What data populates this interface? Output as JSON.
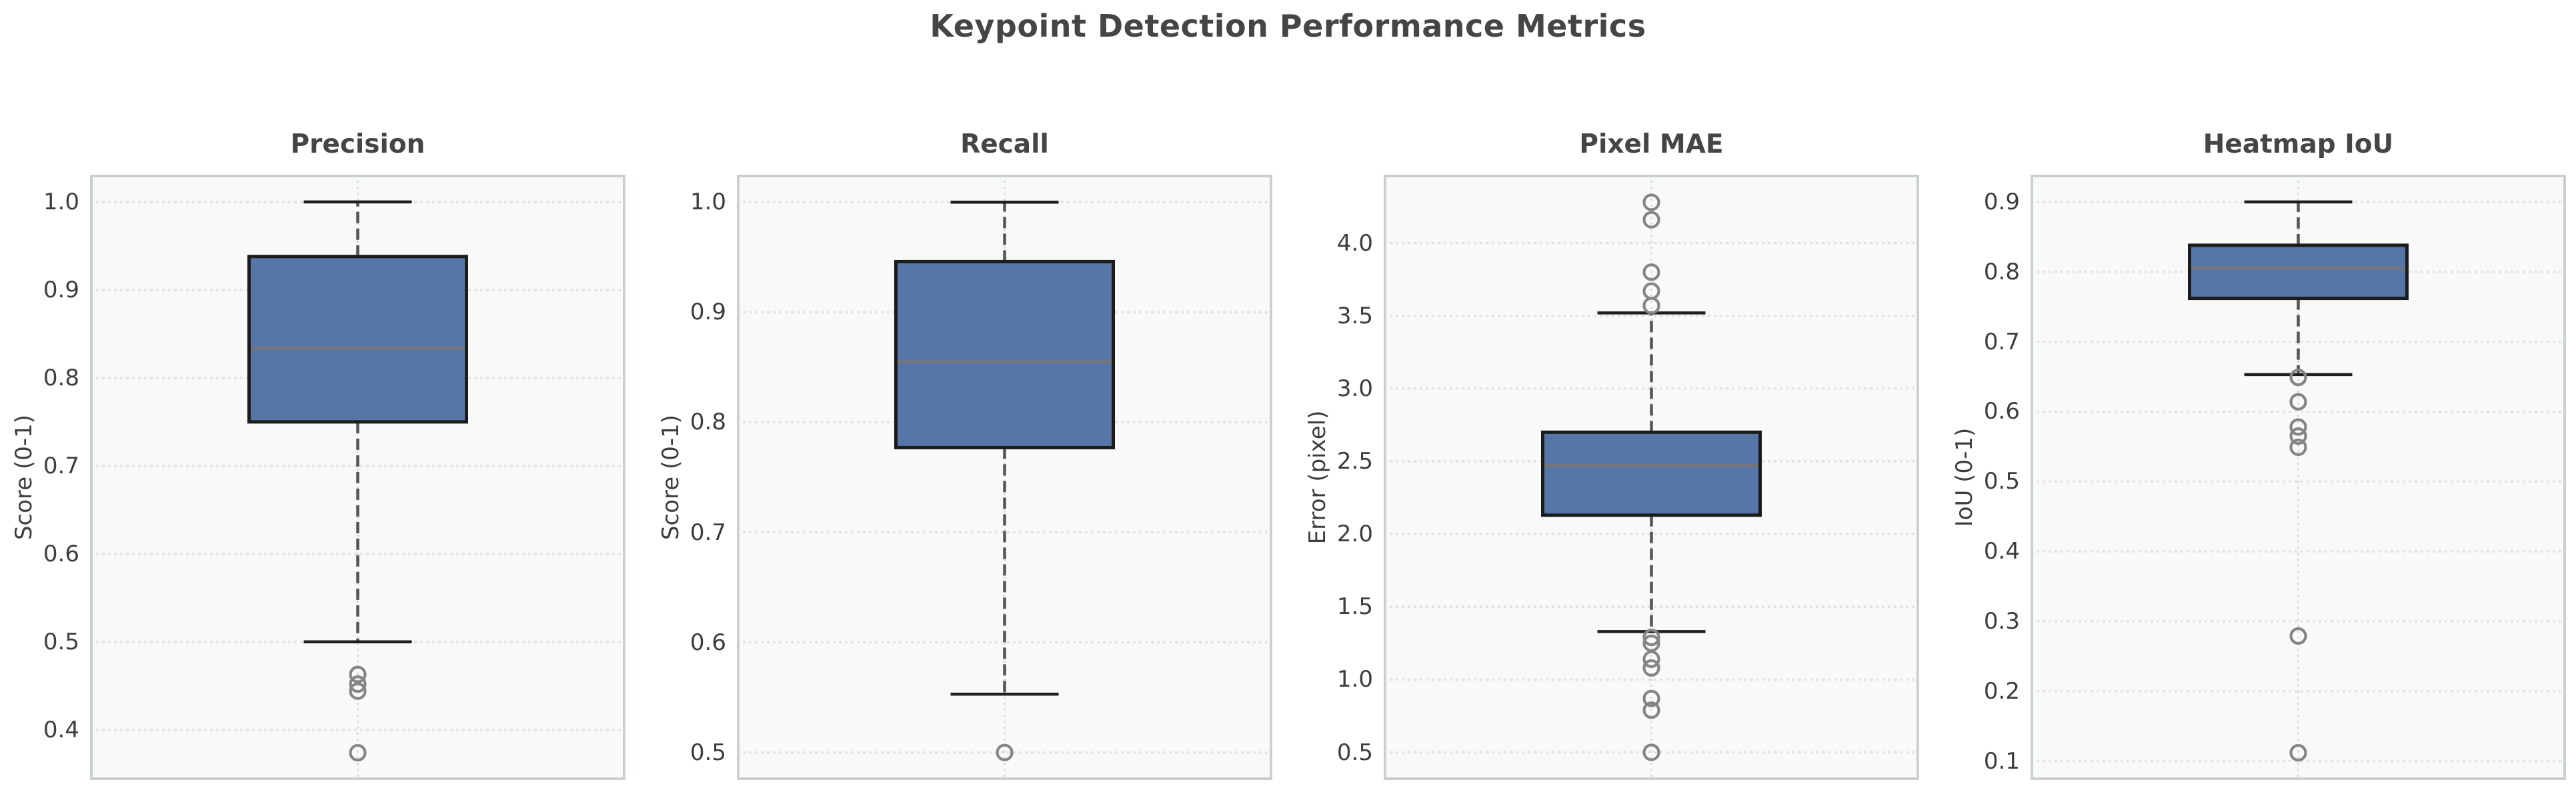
{
  "title": "Keypoint Detection Performance Metrics",
  "colors": {
    "box_fill": "#5576a6",
    "box_edge": "#1c1c1c",
    "median": "#757575",
    "whisker": "#565656",
    "cap": "#1f1f1f",
    "outlier": "#858585",
    "grid": "#e2e2e2",
    "center_grid": "#d9d9d9",
    "plot_bg": "#f8f9f9",
    "spine": "#cbcfd1",
    "title_text": "#454545",
    "tick_text": "#3d3d3d"
  },
  "chart_data": [
    {
      "type": "box",
      "title": "Precision",
      "ylabel": "Score (0-1)",
      "yticks": [
        0.4,
        0.5,
        0.6,
        0.7,
        0.8,
        0.9,
        1.0
      ],
      "ylim": [
        0.343,
        1.031
      ],
      "box": {
        "whisker_low": 0.5,
        "q1": 0.75,
        "median": 0.834,
        "q3": 0.938,
        "whisker_high": 1.0
      },
      "outliers": [
        0.463,
        0.452,
        0.444,
        0.374
      ]
    },
    {
      "type": "box",
      "title": "Recall",
      "ylabel": "Score (0-1)",
      "yticks": [
        0.5,
        0.6,
        0.7,
        0.8,
        0.9,
        1.0
      ],
      "ylim": [
        0.475,
        1.025
      ],
      "box": {
        "whisker_low": 0.553,
        "q1": 0.777,
        "median": 0.855,
        "q3": 0.946,
        "whisker_high": 1.0
      },
      "outliers": [
        0.5
      ]
    },
    {
      "type": "box",
      "title": "Pixel MAE",
      "ylabel": "Error (pixel)",
      "yticks": [
        0.5,
        1.0,
        1.5,
        2.0,
        2.5,
        3.0,
        3.5,
        4.0
      ],
      "ylim": [
        0.31,
        4.47
      ],
      "box": {
        "whisker_low": 1.33,
        "q1": 2.13,
        "median": 2.47,
        "q3": 2.7,
        "whisker_high": 3.52
      },
      "outliers": [
        4.28,
        4.16,
        3.8,
        3.67,
        3.57,
        1.29,
        1.25,
        1.14,
        1.08,
        0.87,
        0.79,
        0.5
      ]
    },
    {
      "type": "box",
      "title": "Heatmap IoU",
      "ylabel": "IoU (0-1)",
      "yticks": [
        0.1,
        0.2,
        0.3,
        0.4,
        0.5,
        0.6,
        0.7,
        0.8,
        0.9
      ],
      "ylim": [
        0.073,
        0.939
      ],
      "box": {
        "whisker_low": 0.653,
        "q1": 0.762,
        "median": 0.806,
        "q3": 0.838,
        "whisker_high": 0.9
      },
      "outliers": [
        0.649,
        0.614,
        0.578,
        0.565,
        0.549,
        0.279,
        0.112
      ]
    }
  ]
}
